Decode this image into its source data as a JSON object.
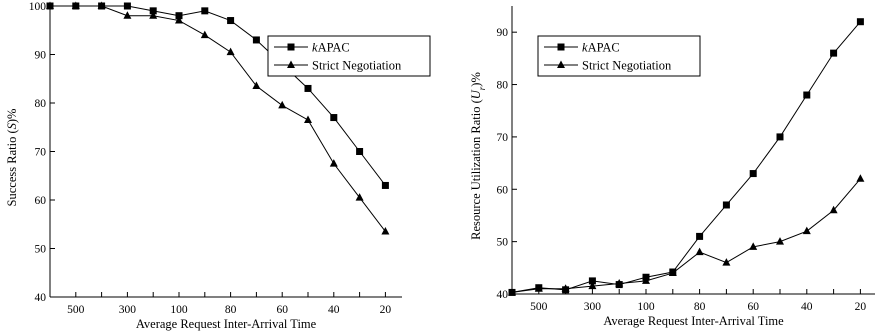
{
  "chart_data": [
    {
      "type": "line",
      "title": "",
      "xlabel": "Average Request Inter-Arrival Time",
      "ylabel": "Success Ratio (S)%",
      "ylabel_parts": [
        "Success Ratio (",
        "S",
        ")%"
      ],
      "categories": [
        "",
        "500",
        "",
        "300",
        "",
        "100",
        "",
        "80",
        "",
        "60",
        "",
        "40",
        "",
        "20"
      ],
      "x_tick_labels": [
        "500",
        "300",
        "100",
        "80",
        "60",
        "40",
        "20"
      ],
      "ylim": [
        40,
        100
      ],
      "y_ticks": [
        40,
        50,
        60,
        70,
        80,
        90,
        100
      ],
      "grid": false,
      "legend_position": "top-right",
      "series": [
        {
          "name": "kAPAC",
          "name_parts": [
            "k",
            "APAC"
          ],
          "marker": "square",
          "values": [
            100,
            100,
            100,
            100,
            99,
            98,
            99,
            97,
            93,
            88,
            83,
            77,
            70,
            63
          ]
        },
        {
          "name": "Strict Negotiation",
          "name_parts": [
            "",
            "Strict Negotiation"
          ],
          "marker": "triangle",
          "values": [
            100,
            100,
            100,
            98,
            98,
            97,
            94,
            90.5,
            83.5,
            79.5,
            76.5,
            67.5,
            60.5,
            53.5
          ]
        }
      ]
    },
    {
      "type": "line",
      "title": "",
      "xlabel": "Average Request Inter-Arrival Time",
      "ylabel": "Resource Utilization Ratio (Ur)%",
      "ylabel_parts": [
        "Resource Utilization Ratio (",
        "U",
        "r",
        ")%"
      ],
      "categories": [
        "",
        "500",
        "",
        "300",
        "",
        "100",
        "",
        "80",
        "",
        "60",
        "",
        "40",
        "",
        "20"
      ],
      "x_tick_labels": [
        "500",
        "300",
        "100",
        "80",
        "60",
        "40",
        "20"
      ],
      "ylim": [
        40,
        95
      ],
      "y_ticks": [
        40,
        50,
        60,
        70,
        80,
        90
      ],
      "grid": false,
      "legend_position": "top-left",
      "series": [
        {
          "name": "kAPAC",
          "name_parts": [
            "k",
            "APAC"
          ],
          "marker": "square",
          "values": [
            40.3,
            41.2,
            40.8,
            42.5,
            41.8,
            43.2,
            44.2,
            51,
            57,
            63,
            70,
            78,
            86,
            92
          ]
        },
        {
          "name": "Strict Negotiation",
          "name_parts": [
            "",
            "Strict Negotiation"
          ],
          "marker": "triangle",
          "values": [
            40.3,
            41,
            41,
            41.5,
            42,
            42.5,
            44,
            48,
            46,
            49,
            50,
            52,
            56,
            62
          ]
        }
      ]
    }
  ]
}
